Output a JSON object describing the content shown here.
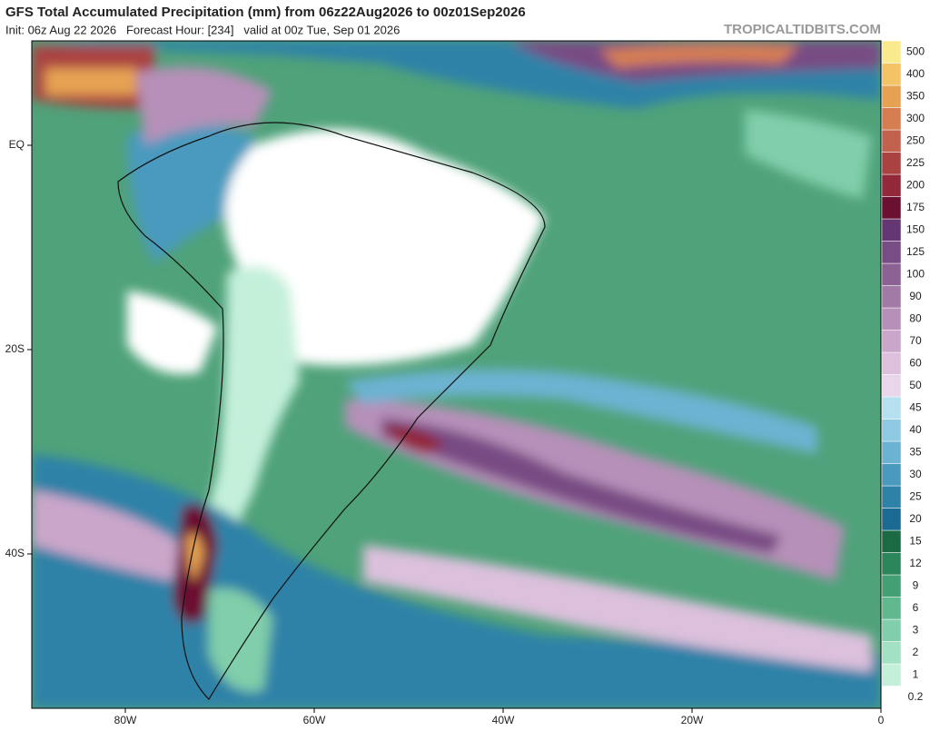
{
  "header": {
    "title": "GFS Total Accumulated Precipitation (mm) from 06z22Aug2026 to 00z01Sep2026",
    "subtitle": "Init: 06z Aug 22 2026   Forecast Hour: [234]   valid at 00z Tue, Sep 01 2026",
    "site": "TROPICALTIDBITS.COM"
  },
  "colorbar": {
    "levels": [
      {
        "label": "0.2",
        "color": "#ffffff"
      },
      {
        "label": "1",
        "color": "#c4f0da"
      },
      {
        "label": "2",
        "color": "#a2e2c2"
      },
      {
        "label": "3",
        "color": "#80ceaa"
      },
      {
        "label": "6",
        "color": "#60b88e"
      },
      {
        "label": "9",
        "color": "#42a074"
      },
      {
        "label": "12",
        "color": "#2c865c"
      },
      {
        "label": "15",
        "color": "#1a6a44"
      },
      {
        "label": "20",
        "color": "#1a6a94"
      },
      {
        "label": "25",
        "color": "#2e82a8"
      },
      {
        "label": "30",
        "color": "#4a9abe"
      },
      {
        "label": "35",
        "color": "#6cb2d2"
      },
      {
        "label": "40",
        "color": "#8ecae2"
      },
      {
        "label": "45",
        "color": "#b4e0f0"
      },
      {
        "label": "50",
        "color": "#ead6ea"
      },
      {
        "label": "60",
        "color": "#dcc0dc"
      },
      {
        "label": "70",
        "color": "#caa6ca"
      },
      {
        "label": "80",
        "color": "#b690b8"
      },
      {
        "label": "90",
        "color": "#a27aa6"
      },
      {
        "label": "100",
        "color": "#8c6294"
      },
      {
        "label": "125",
        "color": "#784c84"
      },
      {
        "label": "150",
        "color": "#643672"
      },
      {
        "label": "175",
        "color": "#6c1032"
      },
      {
        "label": "200",
        "color": "#92283a"
      },
      {
        "label": "225",
        "color": "#aa4242"
      },
      {
        "label": "250",
        "color": "#c2624e"
      },
      {
        "label": "300",
        "color": "#d67e52"
      },
      {
        "label": "350",
        "color": "#e6a252"
      },
      {
        "label": "400",
        "color": "#f2c466"
      },
      {
        "label": "500",
        "color": "#faea8e"
      }
    ]
  },
  "axes": {
    "lon_labels": [
      "80W",
      "60W",
      "40W",
      "20W",
      "0"
    ],
    "lat_labels": [
      "EQ",
      "20S",
      "40S"
    ]
  }
}
